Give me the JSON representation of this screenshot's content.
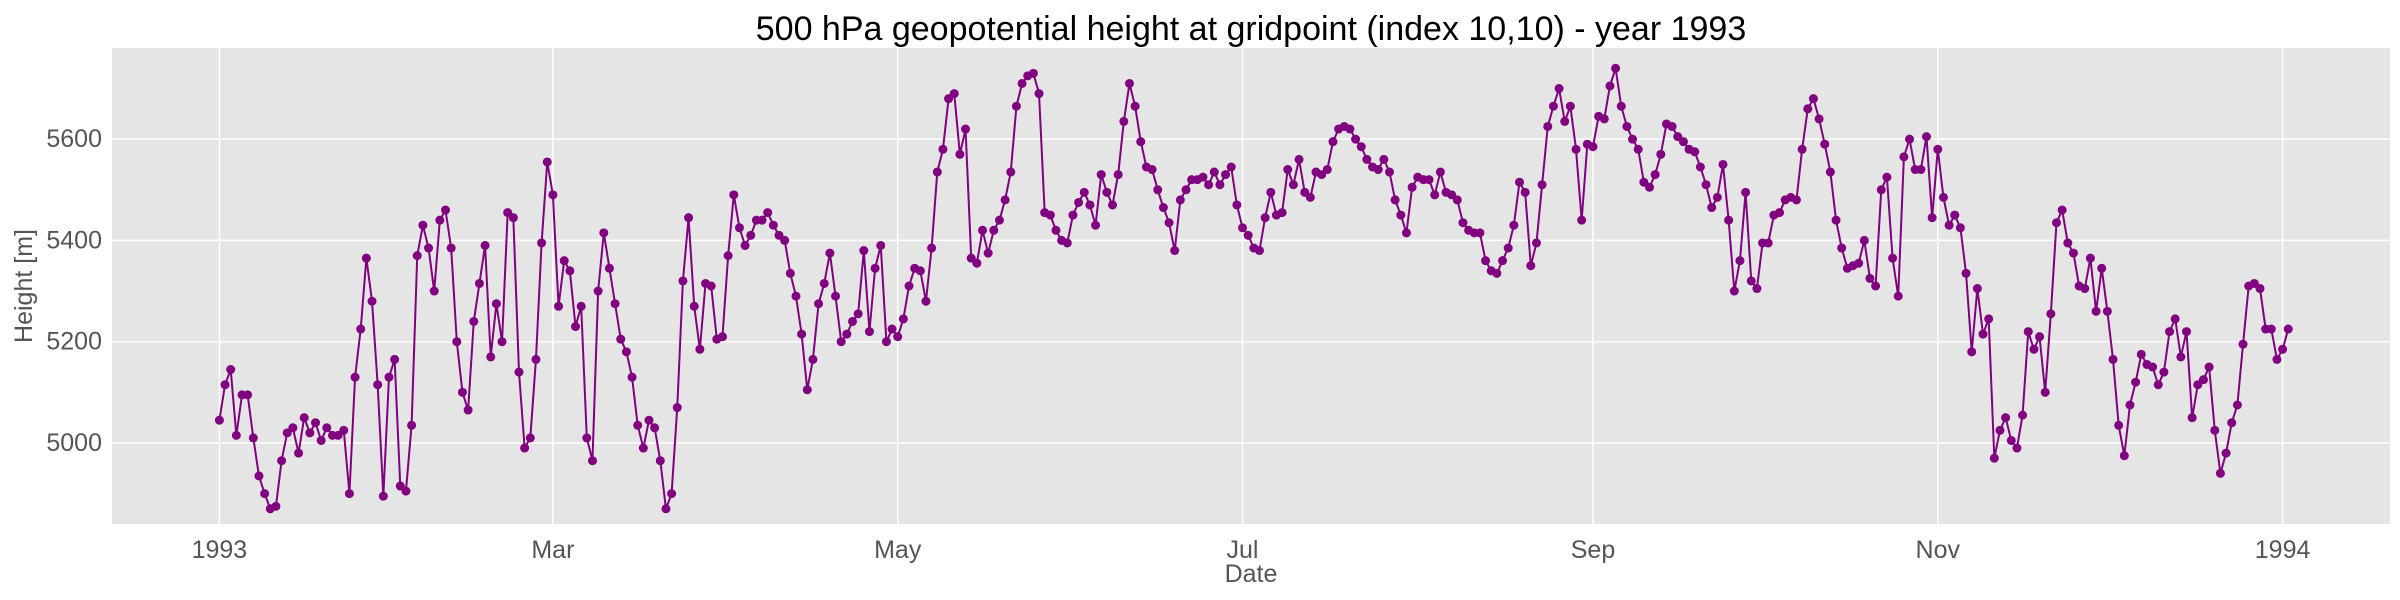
{
  "chart_data": {
    "type": "line",
    "title": "500 hPa geopotential height at gridpoint (index 10,10) - year 1993",
    "xlabel": "Date",
    "ylabel": "Height [m]",
    "x_start": "1993-01-01",
    "x_step": "1 day",
    "xlim": [
      "1992-12-13",
      "1994-01-20"
    ],
    "ylim": [
      4840,
      5780
    ],
    "x_ticks": [
      {
        "date": "1993-01-01",
        "label": "1993"
      },
      {
        "date": "1993-03-01",
        "label": "Mar"
      },
      {
        "date": "1993-05-01",
        "label": "May"
      },
      {
        "date": "1993-07-01",
        "label": "Jul"
      },
      {
        "date": "1993-09-01",
        "label": "Sep"
      },
      {
        "date": "1993-11-01",
        "label": "Nov"
      },
      {
        "date": "1994-01-01",
        "label": "1994"
      }
    ],
    "y_ticks": [
      5000,
      5200,
      5400,
      5600
    ],
    "grid": true,
    "background": "#e5e5e5",
    "line_color": "#800080",
    "marker": "circle",
    "series": [
      {
        "values": [
          5045,
          5115,
          5145,
          5015,
          5095,
          5095,
          5010,
          4935,
          4900,
          4870,
          4875,
          4965,
          5020,
          5030,
          4980,
          5050,
          5020,
          5040,
          5005,
          5030,
          5015,
          5015,
          5025,
          4900,
          5130,
          5225,
          5365,
          5280,
          5115,
          4895,
          5130,
          5165,
          4915,
          4905,
          5035,
          5370,
          5430,
          5385,
          5300,
          5440,
          5460,
          5385,
          5200,
          5100,
          5065,
          5240,
          5315,
          5390,
          5170,
          5275,
          5200,
          5455,
          5445,
          5140,
          4990,
          5010,
          5165,
          5395,
          5555,
          5490,
          5270,
          5360,
          5340,
          5230,
          5270,
          5010,
          4965,
          5300,
          5415,
          5345,
          5275,
          5205,
          5180,
          5130,
          5035,
          4990,
          5045,
          5030,
          4965,
          4870,
          4900,
          5070,
          5320,
          5445,
          5270,
          5185,
          5315,
          5310,
          5205,
          5210,
          5370,
          5490,
          5425,
          5390,
          5410,
          5440,
          5440,
          5455,
          5430,
          5410,
          5400,
          5335,
          5290,
          5215,
          5105,
          5165,
          5275,
          5315,
          5375,
          5290,
          5200,
          5215,
          5240,
          5255,
          5380,
          5220,
          5345,
          5390,
          5200,
          5225,
          5210,
          5245,
          5310,
          5345,
          5340,
          5280,
          5385,
          5535,
          5580,
          5680,
          5690,
          5570,
          5620,
          5365,
          5355,
          5420,
          5375,
          5420,
          5440,
          5480,
          5535,
          5665,
          5710,
          5725,
          5730,
          5690,
          5455,
          5450,
          5420,
          5400,
          5395,
          5450,
          5475,
          5495,
          5470,
          5430,
          5530,
          5495,
          5470,
          5530,
          5635,
          5710,
          5665,
          5595,
          5545,
          5540,
          5500,
          5465,
          5435,
          5380,
          5480,
          5500,
          5520,
          5520,
          5525,
          5510,
          5535,
          5510,
          5530,
          5545,
          5470,
          5425,
          5410,
          5385,
          5380,
          5445,
          5495,
          5450,
          5455,
          5540,
          5510,
          5560,
          5495,
          5485,
          5535,
          5530,
          5540,
          5595,
          5620,
          5625,
          5620,
          5600,
          5585,
          5560,
          5545,
          5540,
          5560,
          5535,
          5480,
          5450,
          5415,
          5505,
          5525,
          5520,
          5520,
          5490,
          5535,
          5495,
          5490,
          5480,
          5435,
          5420,
          5415,
          5415,
          5360,
          5340,
          5335,
          5360,
          5385,
          5430,
          5515,
          5495,
          5350,
          5395,
          5510,
          5625,
          5665,
          5700,
          5635,
          5665,
          5580,
          5440,
          5590,
          5585,
          5645,
          5640,
          5705,
          5740,
          5665,
          5625,
          5600,
          5580,
          5515,
          5505,
          5530,
          5570,
          5630,
          5625,
          5605,
          5595,
          5580,
          5575,
          5545,
          5510,
          5465,
          5485,
          5550,
          5440,
          5300,
          5360,
          5495,
          5320,
          5305,
          5395,
          5395,
          5450,
          5455,
          5480,
          5485,
          5480,
          5580,
          5660,
          5680,
          5640,
          5590,
          5535,
          5440,
          5385,
          5345,
          5350,
          5355,
          5400,
          5325,
          5310,
          5500,
          5525,
          5365,
          5290,
          5565,
          5600,
          5540,
          5540,
          5605,
          5445,
          5580,
          5485,
          5430,
          5450,
          5425,
          5335,
          5180,
          5305,
          5215,
          5245,
          4970,
          5025,
          5050,
          5005,
          4990,
          5055,
          5220,
          5185,
          5210,
          5100,
          5255,
          5435,
          5460,
          5395,
          5375,
          5310,
          5305,
          5365,
          5260,
          5345,
          5260,
          5165,
          5035,
          4975,
          5075,
          5120,
          5175,
          5155,
          5150,
          5115,
          5140,
          5220,
          5245,
          5170,
          5220,
          5050,
          5115,
          5125,
          5150,
          5025,
          4940,
          4980,
          5040,
          5075,
          5195,
          5310,
          5315,
          5305,
          5225,
          5225,
          5165,
          5185,
          5225
        ]
      }
    ]
  }
}
